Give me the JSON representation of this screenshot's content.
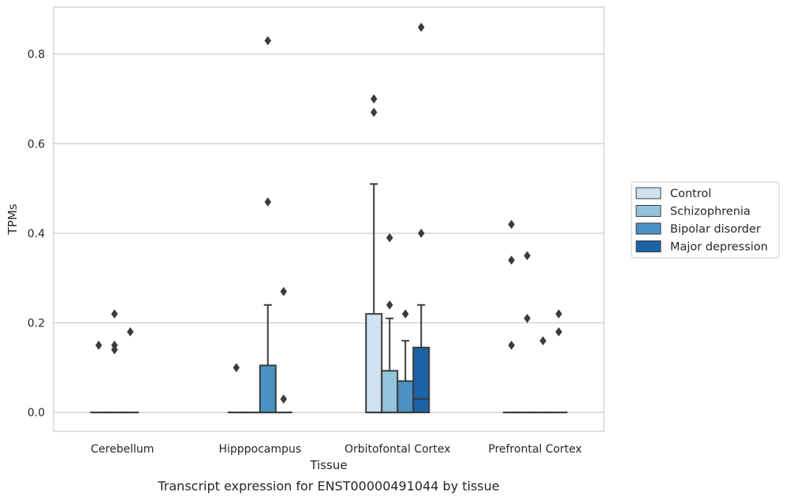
{
  "chart_data": {
    "type": "box",
    "xlabel": "Tissue",
    "ylabel": "TPMs",
    "caption": "Transcript expression for ENST00000491044 by tissue",
    "categories": [
      "Cerebellum",
      "Hipppocampus",
      "Orbitofontal Cortex",
      "Prefrontal Cortex"
    ],
    "ylim": [
      -0.042,
      0.905
    ],
    "yticks": [
      0.0,
      0.2,
      0.4,
      0.6,
      0.8
    ],
    "ytick_labels": [
      "0.0",
      "0.2",
      "0.4",
      "0.6",
      "0.8"
    ],
    "grid": true,
    "legend_position": "right",
    "series": [
      {
        "name": "Control",
        "color": "#d0e1f1",
        "boxes": [
          {
            "q1": 0,
            "median": 0,
            "q3": 0,
            "whislo": 0,
            "whishi": 0,
            "fliers": [
              0.15
            ]
          },
          {
            "q1": 0,
            "median": 0,
            "q3": 0,
            "whislo": 0,
            "whishi": 0,
            "fliers": [
              0.1
            ]
          },
          {
            "q1": 0,
            "median": 0,
            "q3": 0.22,
            "whislo": 0,
            "whishi": 0.51,
            "fliers": [
              0.7,
              0.67
            ]
          },
          {
            "q1": 0,
            "median": 0,
            "q3": 0,
            "whislo": 0,
            "whishi": 0,
            "fliers": [
              0.42,
              0.34,
              0.15
            ]
          }
        ]
      },
      {
        "name": "Schizophrenia",
        "color": "#93c4de",
        "boxes": [
          {
            "q1": 0,
            "median": 0,
            "q3": 0,
            "whislo": 0,
            "whishi": 0,
            "fliers": [
              0.14,
              0.15,
              0.22
            ]
          },
          {
            "q1": 0,
            "median": 0,
            "q3": 0,
            "whislo": 0,
            "whishi": 0,
            "fliers": []
          },
          {
            "q1": 0,
            "median": 0,
            "q3": 0.093,
            "whislo": 0,
            "whishi": 0.21,
            "fliers": [
              0.39,
              0.24
            ]
          },
          {
            "q1": 0,
            "median": 0,
            "q3": 0,
            "whislo": 0,
            "whishi": 0,
            "fliers": [
              0.35,
              0.21
            ]
          }
        ]
      },
      {
        "name": "Bipolar disorder",
        "color": "#4a92c4",
        "boxes": [
          {
            "q1": 0,
            "median": 0,
            "q3": 0,
            "whislo": 0,
            "whishi": 0,
            "fliers": [
              0.18
            ]
          },
          {
            "q1": 0,
            "median": 0,
            "q3": 0.105,
            "whislo": 0,
            "whishi": 0.24,
            "fliers": [
              0.83,
              0.47
            ]
          },
          {
            "q1": 0,
            "median": 0,
            "q3": 0.07,
            "whislo": 0,
            "whishi": 0.16,
            "fliers": [
              0.22
            ]
          },
          {
            "q1": 0,
            "median": 0,
            "q3": 0,
            "whislo": 0,
            "whishi": 0,
            "fliers": [
              0.16
            ]
          }
        ]
      },
      {
        "name": "Major depression",
        "color": "#1c62a7",
        "boxes": [
          null,
          {
            "q1": 0,
            "median": 0,
            "q3": 0,
            "whislo": 0,
            "whishi": 0,
            "fliers": [
              0.27,
              0.03
            ]
          },
          {
            "q1": 0,
            "median": 0.03,
            "q3": 0.145,
            "whislo": 0,
            "whishi": 0.24,
            "fliers": [
              0.86,
              0.4
            ]
          },
          {
            "q1": 0,
            "median": 0,
            "q3": 0,
            "whislo": 0,
            "whishi": 0,
            "fliers": [
              0.22,
              0.18
            ]
          }
        ]
      }
    ]
  }
}
